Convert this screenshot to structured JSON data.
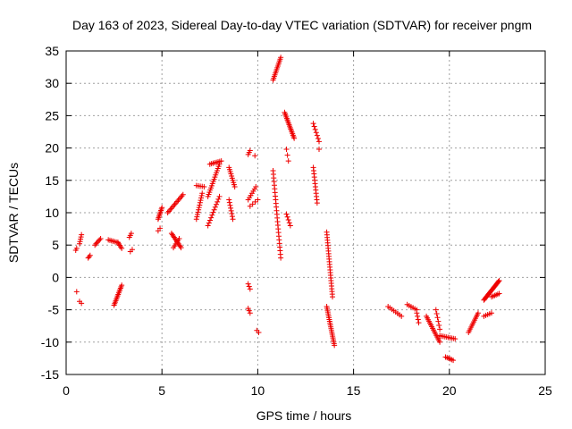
{
  "chart_data": {
    "type": "scatter",
    "title": "Day 163 of 2023, Sidereal Day-to-day VTEC variation (SDTVAR) for receiver pngm",
    "xlabel": "GPS time / hours",
    "ylabel": "SDTVAR / TECUs",
    "xlim": [
      0,
      25
    ],
    "ylim": [
      -15,
      35
    ],
    "xticks": [
      0,
      5,
      10,
      15,
      20,
      25
    ],
    "yticks": [
      -15,
      -10,
      -5,
      0,
      5,
      10,
      15,
      20,
      25,
      30,
      35
    ],
    "grid": true,
    "marker": "+",
    "color": "#ee0000",
    "segments": [
      {
        "x0": 0.5,
        "y0": 4.2,
        "x1": 0.55,
        "y1": 4.5,
        "n": 2
      },
      {
        "x0": 0.55,
        "y0": -2.2,
        "x1": 0.55,
        "y1": -2.2,
        "n": 1
      },
      {
        "x0": 0.7,
        "y0": 5.2,
        "x1": 0.8,
        "y1": 6.6,
        "n": 5
      },
      {
        "x0": 0.7,
        "y0": -3.7,
        "x1": 0.8,
        "y1": -4.0,
        "n": 2
      },
      {
        "x0": 1.15,
        "y0": 3.0,
        "x1": 1.25,
        "y1": 3.4,
        "n": 3
      },
      {
        "x0": 1.5,
        "y0": 5.0,
        "x1": 1.8,
        "y1": 6.0,
        "n": 6
      },
      {
        "x0": 2.2,
        "y0": 5.8,
        "x1": 2.7,
        "y1": 5.4,
        "n": 7
      },
      {
        "x0": 2.7,
        "y0": 5.4,
        "x1": 2.9,
        "y1": 4.5,
        "n": 5
      },
      {
        "x0": 2.5,
        "y0": -4.3,
        "x1": 2.9,
        "y1": -1.2,
        "n": 14
      },
      {
        "x0": 3.3,
        "y0": 6.2,
        "x1": 3.4,
        "y1": 6.8,
        "n": 3
      },
      {
        "x0": 3.35,
        "y0": 4.0,
        "x1": 3.45,
        "y1": 4.3,
        "n": 2
      },
      {
        "x0": 4.8,
        "y0": 9.0,
        "x1": 5.0,
        "y1": 10.8,
        "n": 9
      },
      {
        "x0": 4.8,
        "y0": 7.2,
        "x1": 4.9,
        "y1": 7.6,
        "n": 2
      },
      {
        "x0": 5.3,
        "y0": 10.0,
        "x1": 6.1,
        "y1": 12.8,
        "n": 14
      },
      {
        "x0": 5.5,
        "y0": 6.8,
        "x1": 6.0,
        "y1": 4.6,
        "n": 12
      },
      {
        "x0": 5.6,
        "y0": 4.6,
        "x1": 5.9,
        "y1": 6.0,
        "n": 6
      },
      {
        "x0": 6.8,
        "y0": 14.2,
        "x1": 7.2,
        "y1": 14.0,
        "n": 5
      },
      {
        "x0": 6.8,
        "y0": 9.0,
        "x1": 7.1,
        "y1": 13.0,
        "n": 12
      },
      {
        "x0": 7.5,
        "y0": 17.5,
        "x1": 8.1,
        "y1": 18.0,
        "n": 8
      },
      {
        "x0": 7.4,
        "y0": 12.5,
        "x1": 8.0,
        "y1": 17.5,
        "n": 16
      },
      {
        "x0": 7.4,
        "y0": 8.0,
        "x1": 8.0,
        "y1": 12.5,
        "n": 12
      },
      {
        "x0": 8.5,
        "y0": 17.0,
        "x1": 8.8,
        "y1": 14.0,
        "n": 10
      },
      {
        "x0": 8.5,
        "y0": 12.0,
        "x1": 8.7,
        "y1": 9.0,
        "n": 8
      },
      {
        "x0": 9.5,
        "y0": 19.0,
        "x1": 9.6,
        "y1": 19.6,
        "n": 3
      },
      {
        "x0": 9.85,
        "y0": 18.8,
        "x1": 9.85,
        "y1": 18.8,
        "n": 1
      },
      {
        "x0": 9.5,
        "y0": 12.0,
        "x1": 9.9,
        "y1": 14.0,
        "n": 7
      },
      {
        "x0": 9.6,
        "y0": 11.0,
        "x1": 10.0,
        "y1": 12.0,
        "n": 4
      },
      {
        "x0": 9.5,
        "y0": -1.0,
        "x1": 9.6,
        "y1": -1.8,
        "n": 3
      },
      {
        "x0": 9.5,
        "y0": -4.8,
        "x1": 9.6,
        "y1": -5.5,
        "n": 3
      },
      {
        "x0": 9.95,
        "y0": -8.2,
        "x1": 10.05,
        "y1": -8.5,
        "n": 2
      },
      {
        "x0": 10.8,
        "y0": 30.5,
        "x1": 11.2,
        "y1": 34.0,
        "n": 14
      },
      {
        "x0": 10.8,
        "y0": 16.5,
        "x1": 11.2,
        "y1": 3.0,
        "n": 25
      },
      {
        "x0": 11.4,
        "y0": 25.5,
        "x1": 11.9,
        "y1": 21.5,
        "n": 18
      },
      {
        "x0": 11.5,
        "y0": 19.8,
        "x1": 11.6,
        "y1": 18.0,
        "n": 3
      },
      {
        "x0": 11.5,
        "y0": 9.8,
        "x1": 11.7,
        "y1": 8.0,
        "n": 5
      },
      {
        "x0": 12.9,
        "y0": 17.0,
        "x1": 13.1,
        "y1": 11.5,
        "n": 12
      },
      {
        "x0": 12.9,
        "y0": 23.8,
        "x1": 13.2,
        "y1": 21.0,
        "n": 7
      },
      {
        "x0": 13.2,
        "y0": 19.8,
        "x1": 13.2,
        "y1": 19.8,
        "n": 1
      },
      {
        "x0": 13.6,
        "y0": 7.0,
        "x1": 13.9,
        "y1": -3.0,
        "n": 25
      },
      {
        "x0": 13.6,
        "y0": -4.5,
        "x1": 14.0,
        "y1": -10.5,
        "n": 22
      },
      {
        "x0": 16.8,
        "y0": -4.5,
        "x1": 17.5,
        "y1": -6.0,
        "n": 8
      },
      {
        "x0": 17.8,
        "y0": -4.2,
        "x1": 18.3,
        "y1": -5.0,
        "n": 6
      },
      {
        "x0": 18.3,
        "y0": -5.5,
        "x1": 18.4,
        "y1": -7.0,
        "n": 4
      },
      {
        "x0": 18.8,
        "y0": -6.0,
        "x1": 19.5,
        "y1": -10.0,
        "n": 16
      },
      {
        "x0": 19.3,
        "y0": -5.0,
        "x1": 19.5,
        "y1": -8.0,
        "n": 6
      },
      {
        "x0": 19.5,
        "y0": -9.0,
        "x1": 20.3,
        "y1": -9.5,
        "n": 10
      },
      {
        "x0": 19.8,
        "y0": -12.3,
        "x1": 20.2,
        "y1": -12.8,
        "n": 6
      },
      {
        "x0": 21.0,
        "y0": -8.5,
        "x1": 21.5,
        "y1": -5.5,
        "n": 12
      },
      {
        "x0": 21.8,
        "y0": -6.0,
        "x1": 22.2,
        "y1": -5.5,
        "n": 5
      },
      {
        "x0": 21.8,
        "y0": -3.5,
        "x1": 22.6,
        "y1": -0.5,
        "n": 22
      },
      {
        "x0": 22.2,
        "y0": -3.0,
        "x1": 22.6,
        "y1": -2.5,
        "n": 6
      }
    ]
  }
}
